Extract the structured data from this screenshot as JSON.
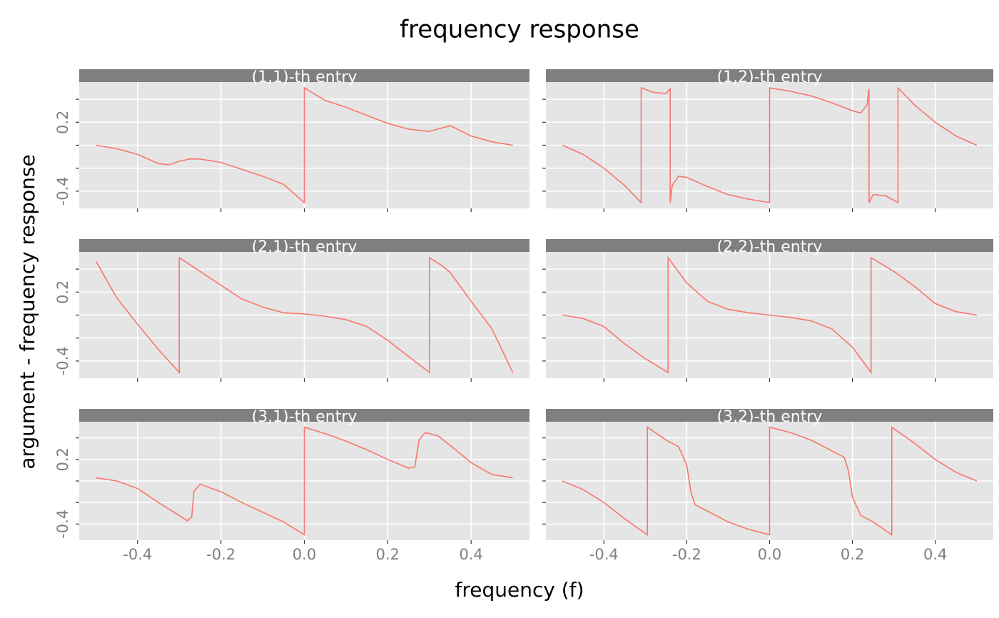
{
  "figure": {
    "title": "frequency response",
    "x_label": "frequency (f)",
    "y_label": "argument - frequency response"
  },
  "chart_data": [
    {
      "type": "line",
      "title": "(1,1)-th entry",
      "color": "#F8766D",
      "x": [
        -0.5,
        -0.45,
        -0.4,
        -0.35,
        -0.325,
        -0.3,
        -0.275,
        -0.25,
        -0.2,
        -0.15,
        -0.1,
        -0.05,
        0,
        0,
        0.05,
        0.1,
        0.15,
        0.2,
        0.25,
        0.3,
        0.35,
        0.4,
        0.45,
        0.5
      ],
      "values": [
        0,
        -0.03,
        -0.08,
        -0.16,
        -0.17,
        -0.14,
        -0.12,
        -0.12,
        -0.15,
        -0.21,
        -0.27,
        -0.34,
        -0.5,
        0.5,
        0.39,
        0.33,
        0.26,
        0.19,
        0.14,
        0.12,
        0.17,
        0.08,
        0.03,
        0
      ],
      "xlim": [
        -0.54,
        0.54
      ],
      "xticks": [
        -0.4,
        -0.2,
        0.0,
        0.2,
        0.4
      ],
      "ylim": [
        -0.55,
        0.55
      ],
      "yticks": [
        -0.4,
        0.2
      ],
      "yticks_minor": [
        -0.2,
        0,
        0.4
      ],
      "grid": true
    },
    {
      "type": "line",
      "title": "(1,2)-th entry",
      "color": "#F8766D",
      "x": [
        -0.5,
        -0.45,
        -0.4,
        -0.35,
        -0.31,
        -0.31,
        -0.28,
        -0.25,
        -0.24,
        -0.24,
        -0.235,
        -0.22,
        -0.2,
        -0.15,
        -0.1,
        -0.05,
        0,
        0,
        0.05,
        0.1,
        0.15,
        0.2,
        0.22,
        0.235,
        0.24,
        0.24,
        0.25,
        0.28,
        0.31,
        0.31,
        0.35,
        0.4,
        0.45,
        0.5
      ],
      "values": [
        0,
        -0.08,
        -0.2,
        -0.35,
        -0.5,
        0.5,
        0.46,
        0.45,
        0.49,
        -0.5,
        -0.35,
        -0.27,
        -0.28,
        -0.36,
        -0.43,
        -0.47,
        -0.5,
        0.5,
        0.47,
        0.43,
        0.37,
        0.3,
        0.28,
        0.35,
        0.49,
        -0.5,
        -0.43,
        -0.44,
        -0.5,
        0.5,
        0.35,
        0.2,
        0.08,
        0
      ],
      "xlim": [
        -0.54,
        0.54
      ],
      "xticks": [
        -0.4,
        -0.2,
        0.0,
        0.2,
        0.4
      ],
      "ylim": [
        -0.55,
        0.55
      ],
      "yticks": [
        -0.4,
        0.2
      ],
      "yticks_minor": [
        -0.2,
        0,
        0.4
      ],
      "grid": true
    },
    {
      "type": "line",
      "title": "(2,1)-th entry",
      "color": "#F8766D",
      "x": [
        -0.5,
        -0.45,
        -0.4,
        -0.35,
        -0.3,
        -0.3,
        -0.25,
        -0.2,
        -0.15,
        -0.1,
        -0.05,
        0,
        0.05,
        0.1,
        0.15,
        0.2,
        0.25,
        0.3,
        0.3,
        0.33,
        0.35,
        0.4,
        0.45,
        0.5
      ],
      "values": [
        0.47,
        0.15,
        -0.08,
        -0.3,
        -0.5,
        0.5,
        0.38,
        0.26,
        0.14,
        0.07,
        0.02,
        0.01,
        -0.01,
        -0.04,
        -0.1,
        -0.22,
        -0.36,
        -0.5,
        0.5,
        0.43,
        0.37,
        0.12,
        -0.12,
        -0.5
      ],
      "xlim": [
        -0.54,
        0.54
      ],
      "xticks": [
        -0.4,
        -0.2,
        0.0,
        0.2,
        0.4
      ],
      "ylim": [
        -0.55,
        0.55
      ],
      "yticks": [
        -0.4,
        0.2
      ],
      "yticks_minor": [
        -0.2,
        0,
        0.4
      ],
      "grid": true
    },
    {
      "type": "line",
      "title": "(2,2)-th entry",
      "color": "#F8766D",
      "x": [
        -0.5,
        -0.45,
        -0.4,
        -0.35,
        -0.3,
        -0.245,
        -0.245,
        -0.2,
        -0.15,
        -0.1,
        -0.05,
        0,
        0.05,
        0.1,
        0.15,
        0.2,
        0.245,
        0.245,
        0.3,
        0.35,
        0.4,
        0.45,
        0.5
      ],
      "values": [
        0,
        -0.03,
        -0.1,
        -0.25,
        -0.38,
        -0.5,
        0.5,
        0.28,
        0.12,
        0.05,
        0.02,
        0,
        -0.02,
        -0.05,
        -0.12,
        -0.28,
        -0.5,
        0.5,
        0.38,
        0.25,
        0.1,
        0.03,
        0
      ],
      "xlim": [
        -0.54,
        0.54
      ],
      "xticks": [
        -0.4,
        -0.2,
        0.0,
        0.2,
        0.4
      ],
      "ylim": [
        -0.55,
        0.55
      ],
      "yticks": [
        -0.4,
        0.2
      ],
      "yticks_minor": [
        -0.2,
        0,
        0.4
      ],
      "grid": true
    },
    {
      "type": "line",
      "title": "(3,1)-th entry",
      "color": "#F8766D",
      "x": [
        -0.5,
        -0.45,
        -0.4,
        -0.35,
        -0.3,
        -0.28,
        -0.27,
        -0.265,
        -0.25,
        -0.2,
        -0.15,
        -0.1,
        -0.05,
        0,
        0,
        0.05,
        0.1,
        0.15,
        0.2,
        0.25,
        0.265,
        0.275,
        0.29,
        0.32,
        0.35,
        0.4,
        0.45,
        0.5
      ],
      "values": [
        0.03,
        0,
        -0.07,
        -0.2,
        -0.32,
        -0.37,
        -0.33,
        -0.1,
        -0.03,
        -0.1,
        -0.2,
        -0.29,
        -0.38,
        -0.5,
        0.5,
        0.44,
        0.37,
        0.29,
        0.2,
        0.12,
        0.13,
        0.38,
        0.45,
        0.42,
        0.33,
        0.17,
        0.06,
        0.03
      ],
      "xlim": [
        -0.54,
        0.54
      ],
      "xticks": [
        -0.4,
        -0.2,
        0.0,
        0.2,
        0.4
      ],
      "ylim": [
        -0.55,
        0.55
      ],
      "yticks": [
        -0.4,
        0.2
      ],
      "yticks_minor": [
        -0.2,
        0,
        0.4
      ],
      "grid": true
    },
    {
      "type": "line",
      "title": "(3,2)-th entry",
      "color": "#F8766D",
      "x": [
        -0.5,
        -0.45,
        -0.4,
        -0.35,
        -0.295,
        -0.295,
        -0.25,
        -0.22,
        -0.2,
        -0.19,
        -0.18,
        -0.15,
        -0.1,
        -0.05,
        0,
        0,
        0.05,
        0.1,
        0.15,
        0.18,
        0.19,
        0.2,
        0.22,
        0.25,
        0.295,
        0.295,
        0.35,
        0.4,
        0.45,
        0.5
      ],
      "values": [
        0,
        -0.08,
        -0.2,
        -0.35,
        -0.5,
        0.5,
        0.38,
        0.32,
        0.15,
        -0.1,
        -0.22,
        -0.28,
        -0.38,
        -0.45,
        -0.5,
        0.5,
        0.45,
        0.38,
        0.28,
        0.22,
        0.1,
        -0.15,
        -0.32,
        -0.38,
        -0.5,
        0.5,
        0.35,
        0.2,
        0.08,
        0
      ],
      "xlim": [
        -0.54,
        0.54
      ],
      "xticks": [
        -0.4,
        -0.2,
        0.0,
        0.2,
        0.4
      ],
      "ylim": [
        -0.55,
        0.55
      ],
      "yticks": [
        -0.4,
        0.2
      ],
      "yticks_minor": [
        -0.2,
        0,
        0.4
      ],
      "grid": true
    }
  ]
}
